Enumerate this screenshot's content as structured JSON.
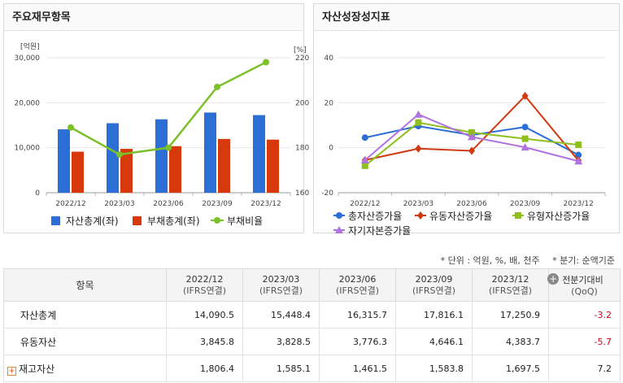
{
  "left_panel": {
    "title": "주요재무항목",
    "chart_data": {
      "type": "bar",
      "categories": [
        "2022/12",
        "2023/03",
        "2023/06",
        "2023/09",
        "2023/12"
      ],
      "series": [
        {
          "name": "자산총계(좌)",
          "type": "bar",
          "axis": "left",
          "color": "#2b6fd6",
          "values": [
            14090.5,
            15448.4,
            16315.7,
            17816.1,
            17250.9
          ]
        },
        {
          "name": "부채총계(좌)",
          "type": "bar",
          "axis": "left",
          "color": "#d8390c",
          "values": [
            9120,
            9750,
            10350,
            11950,
            11800
          ]
        },
        {
          "name": "부채비율",
          "type": "line",
          "axis": "right",
          "color": "#7cc02a",
          "values": [
            189,
            177,
            180,
            207,
            218
          ]
        }
      ],
      "y_left": {
        "label": "[억원]",
        "min": 0,
        "max": 30000,
        "ticks": [
          "0",
          "10,000",
          "20,000",
          "30,000"
        ]
      },
      "y_right": {
        "label": "[%]",
        "min": 160,
        "max": 220,
        "ticks": [
          "160",
          "180",
          "200",
          "220"
        ]
      }
    }
  },
  "right_panel": {
    "title": "자산성장성지표",
    "chart_data": {
      "type": "line",
      "categories": [
        "2022/12",
        "2023/03",
        "2023/06",
        "2023/09",
        "2023/12"
      ],
      "y": {
        "min": -20,
        "max": 40,
        "ticks": [
          "-20",
          "0",
          "20",
          "40"
        ]
      },
      "series": [
        {
          "name": "총자산증가율",
          "color": "#2b6fd6",
          "marker": "circle",
          "values": [
            4.5,
            9.6,
            5.6,
            9.2,
            -3.2
          ]
        },
        {
          "name": "유동자산증가율",
          "color": "#d03a12",
          "marker": "diamond",
          "values": [
            -5.5,
            -0.4,
            -1.4,
            23.0,
            -5.7
          ]
        },
        {
          "name": "유형자산증가율",
          "color": "#8fbf1d",
          "marker": "square",
          "values": [
            -8.0,
            11.2,
            6.8,
            4.0,
            1.3
          ]
        },
        {
          "name": "자기자본증가율",
          "color": "#b173e0",
          "marker": "triangle",
          "values": [
            -5.5,
            14.8,
            4.8,
            0.2,
            -6.0
          ]
        }
      ]
    }
  },
  "meta": {
    "unit": "* 단위 : 억원, %, 배, 천주",
    "period": "* 분기: 순액기준"
  },
  "table": {
    "header_item": "항목",
    "columns": [
      {
        "period": "2022/12",
        "basis": "(IFRS연결)"
      },
      {
        "period": "2023/03",
        "basis": "(IFRS연결)"
      },
      {
        "period": "2023/06",
        "basis": "(IFRS연결)"
      },
      {
        "period": "2023/09",
        "basis": "(IFRS연결)"
      },
      {
        "period": "2023/12",
        "basis": "(IFRS연결)"
      }
    ],
    "change_header": "전분기대비",
    "change_sub": "(QoQ)",
    "plus_icon": "+",
    "rows": [
      {
        "label": "자산총계",
        "values": [
          "14,090.5",
          "15,448.4",
          "16,315.7",
          "17,816.1",
          "17,250.9"
        ],
        "change": "-3.2"
      },
      {
        "label": "유동자산",
        "values": [
          "3,845.8",
          "3,828.5",
          "3,776.3",
          "4,646.1",
          "4,383.7"
        ],
        "change": "-5.7"
      },
      {
        "label": "재고자산",
        "values": [
          "1,806.4",
          "1,585.1",
          "1,461.5",
          "1,583.8",
          "1,697.5"
        ],
        "change": "7.2"
      }
    ],
    "expand_icon": "+"
  }
}
